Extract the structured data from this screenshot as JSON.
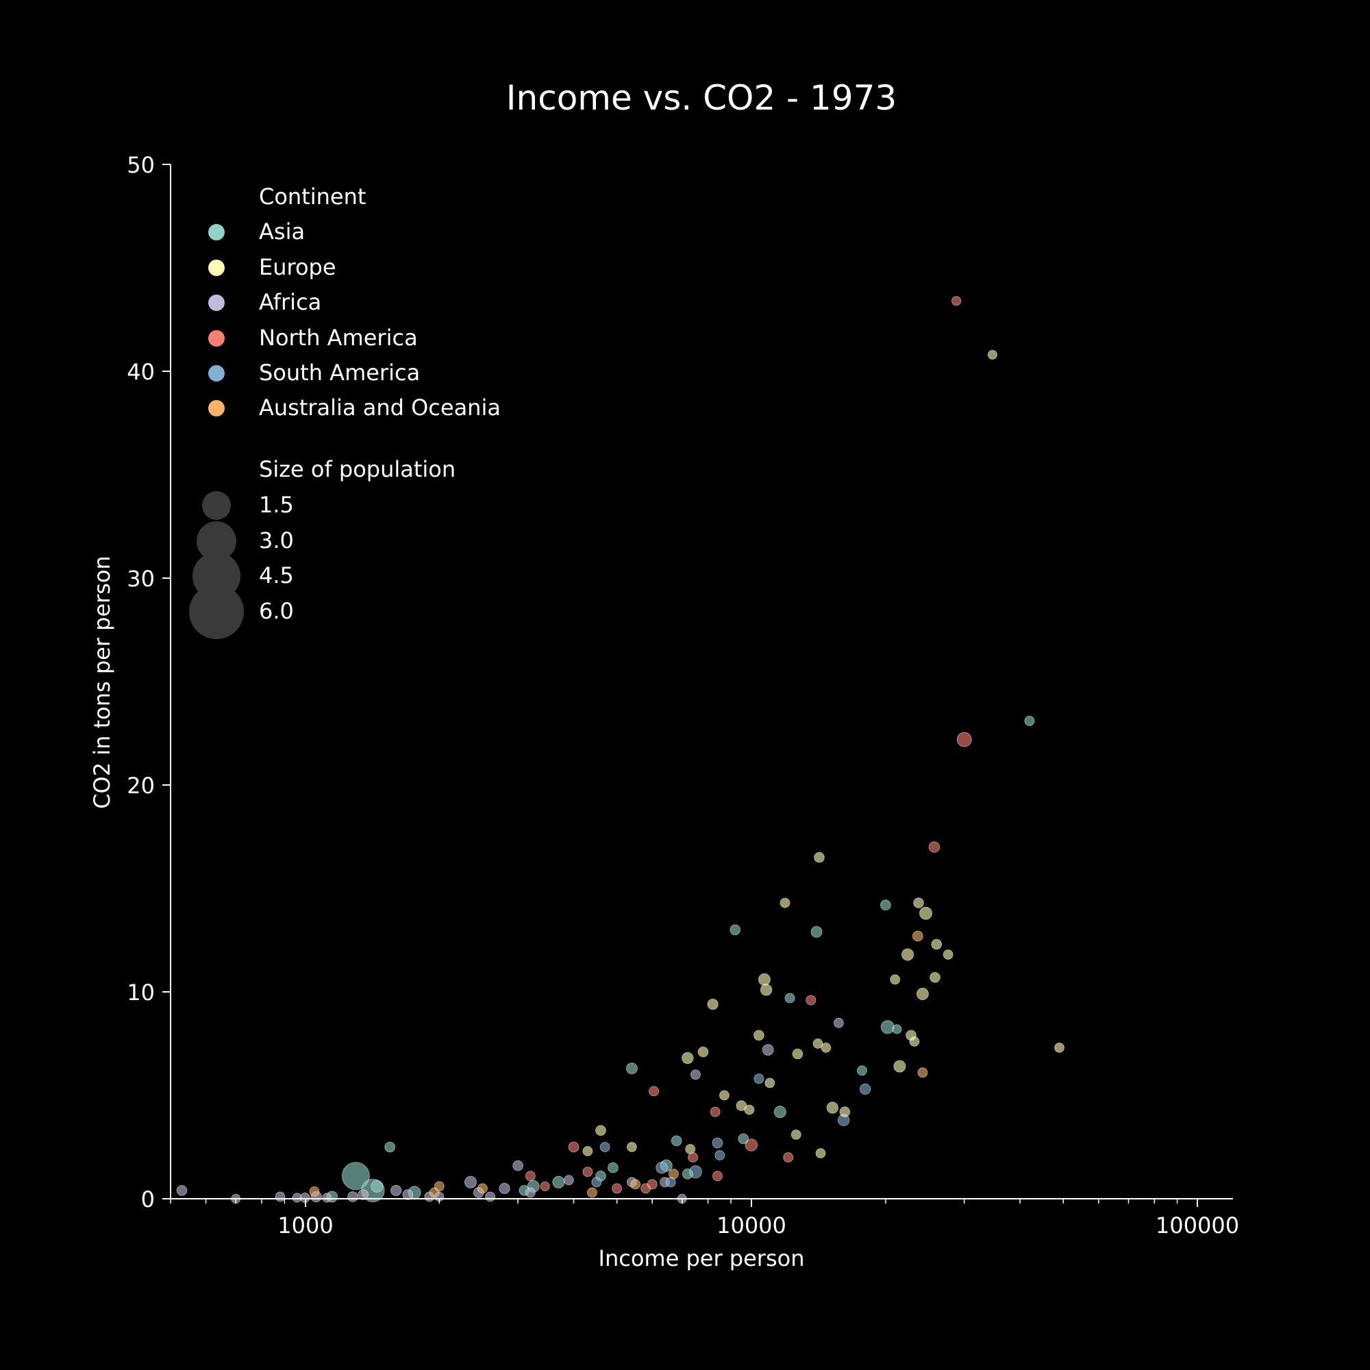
{
  "chart_data": {
    "type": "scatter",
    "title": "Income vs. CO2 - 1973",
    "xlabel": "Income per person",
    "ylabel": "CO2 in tons per person",
    "xscale": "log",
    "xlim": [
      500,
      120000
    ],
    "ylim": [
      0,
      50
    ],
    "x_ticks": [
      "1000",
      "10000",
      "100000"
    ],
    "y_ticks": [
      "0",
      "10",
      "20",
      "30",
      "40",
      "50"
    ],
    "grid": false,
    "legend": {
      "placement": "top-left",
      "continent_title": "Continent",
      "continents": [
        {
          "name": "Asia",
          "color": "#8dd3c7"
        },
        {
          "name": "Europe",
          "color": "#ffffb3"
        },
        {
          "name": "Africa",
          "color": "#bebada"
        },
        {
          "name": "North America",
          "color": "#fb8072"
        },
        {
          "name": "South America",
          "color": "#80b1d3"
        },
        {
          "name": "Australia and Oceania",
          "color": "#fdb462"
        }
      ],
      "size_title": "Size of population",
      "sizes": [
        "1.5",
        "3.0",
        "4.5",
        "6.0"
      ]
    },
    "series": [
      {
        "name": "Asia",
        "points": [
          [
            1300,
            1.1,
            9
          ],
          [
            1420,
            0.4,
            6
          ],
          [
            1450,
            0.6,
            1.2
          ],
          [
            1550,
            2.5,
            0.8
          ],
          [
            1760,
            0.3,
            1.4
          ],
          [
            1150,
            0.1,
            1
          ],
          [
            3100,
            0.4,
            0.8
          ],
          [
            3250,
            0.6,
            1.2
          ],
          [
            3700,
            0.8,
            1.2
          ],
          [
            4600,
            1.1,
            0.8
          ],
          [
            4900,
            1.5,
            0.8
          ],
          [
            5400,
            6.3,
            1
          ],
          [
            6450,
            1.6,
            1.2
          ],
          [
            6800,
            2.8,
            0.8
          ],
          [
            7200,
            1.2,
            0.8
          ],
          [
            9200,
            13.0,
            0.8
          ],
          [
            9600,
            2.9,
            0.8
          ],
          [
            11600,
            4.2,
            1.2
          ],
          [
            12200,
            9.7,
            0.7
          ],
          [
            14000,
            12.9,
            1
          ],
          [
            17700,
            6.2,
            0.7
          ],
          [
            20000,
            14.2,
            0.8
          ],
          [
            20200,
            8.3,
            1.6
          ],
          [
            21200,
            8.2,
            0.6
          ],
          [
            42000,
            23.1,
            0.7
          ]
        ]
      },
      {
        "name": "Europe",
        "points": [
          [
            4300,
            2.3,
            0.7
          ],
          [
            4600,
            3.3,
            0.8
          ],
          [
            5400,
            2.5,
            0.7
          ],
          [
            7200,
            6.8,
            1.1
          ],
          [
            7300,
            2.4,
            0.7
          ],
          [
            7800,
            7.1,
            0.8
          ],
          [
            8200,
            9.4,
            0.9
          ],
          [
            8700,
            5.0,
            0.7
          ],
          [
            9500,
            4.5,
            0.8
          ],
          [
            9900,
            4.3,
            0.7
          ],
          [
            10400,
            7.9,
            0.8
          ],
          [
            10700,
            10.6,
            1.2
          ],
          [
            10800,
            10.1,
            1.1
          ],
          [
            11000,
            5.6,
            0.7
          ],
          [
            11900,
            14.3,
            0.7
          ],
          [
            12700,
            7.0,
            0.8
          ],
          [
            14100,
            7.5,
            0.7
          ],
          [
            14200,
            16.5,
            0.8
          ],
          [
            14700,
            7.3,
            0.7
          ],
          [
            15200,
            4.4,
            1.1
          ],
          [
            16200,
            4.2,
            0.8
          ],
          [
            21000,
            10.6,
            0.7
          ],
          [
            21500,
            6.4,
            1.2
          ],
          [
            22400,
            11.8,
            1.2
          ],
          [
            22800,
            7.9,
            0.8
          ],
          [
            23200,
            7.6,
            0.7
          ],
          [
            23700,
            14.3,
            0.8
          ],
          [
            24200,
            9.9,
            1.2
          ],
          [
            24600,
            13.8,
            1.4
          ],
          [
            25800,
            10.7,
            0.8
          ],
          [
            26000,
            12.3,
            0.8
          ],
          [
            27600,
            11.8,
            0.7
          ],
          [
            34700,
            40.8,
            0.6
          ],
          [
            49000,
            7.3,
            0.7
          ],
          [
            12600,
            3.1,
            0.7
          ],
          [
            14300,
            2.2,
            0.7
          ]
        ]
      },
      {
        "name": "Africa",
        "points": [
          [
            530,
            0.4,
            0.8
          ],
          [
            700,
            0.0,
            0.6
          ],
          [
            880,
            0.1,
            0.7
          ],
          [
            960,
            0.05,
            0.6
          ],
          [
            1000,
            0.05,
            0.7
          ],
          [
            1060,
            0.1,
            0.9
          ],
          [
            1120,
            0.05,
            0.6
          ],
          [
            1280,
            0.1,
            0.8
          ],
          [
            1350,
            0.2,
            0.8
          ],
          [
            1600,
            0.4,
            0.9
          ],
          [
            1700,
            0.2,
            0.8
          ],
          [
            1900,
            0.1,
            0.7
          ],
          [
            2000,
            0.1,
            0.6
          ],
          [
            2350,
            0.8,
            1.2
          ],
          [
            2450,
            0.3,
            0.8
          ],
          [
            2600,
            0.1,
            0.7
          ],
          [
            2800,
            0.5,
            0.9
          ],
          [
            3000,
            1.6,
            0.8
          ],
          [
            3200,
            0.3,
            0.7
          ],
          [
            3900,
            0.9,
            0.7
          ],
          [
            5400,
            0.8,
            0.7
          ],
          [
            6400,
            0.8,
            0.7
          ],
          [
            7000,
            0.0,
            0.6
          ],
          [
            7500,
            6.0,
            0.7
          ],
          [
            10900,
            7.2,
            1
          ],
          [
            15700,
            8.5,
            0.7
          ]
        ]
      },
      {
        "name": "North America",
        "points": [
          [
            3200,
            1.1,
            0.7
          ],
          [
            3450,
            0.6,
            0.6
          ],
          [
            4000,
            2.5,
            0.8
          ],
          [
            4300,
            1.3,
            0.7
          ],
          [
            5000,
            0.5,
            0.7
          ],
          [
            5800,
            0.5,
            0.7
          ],
          [
            6000,
            0.7,
            0.7
          ],
          [
            6050,
            5.2,
            0.7
          ],
          [
            7400,
            2.0,
            0.7
          ],
          [
            8300,
            4.2,
            0.7
          ],
          [
            8400,
            1.1,
            0.7
          ],
          [
            10000,
            2.6,
            1.3
          ],
          [
            12100,
            2.0,
            0.7
          ],
          [
            13600,
            9.6,
            0.7
          ],
          [
            25700,
            17.0,
            0.9
          ],
          [
            28800,
            43.4,
            0.6
          ],
          [
            30000,
            22.2,
            2
          ]
        ]
      },
      {
        "name": "South America",
        "points": [
          [
            4500,
            0.8,
            0.7
          ],
          [
            4700,
            2.5,
            0.7
          ],
          [
            6300,
            1.5,
            1.1
          ],
          [
            6600,
            0.8,
            0.7
          ],
          [
            7500,
            1.3,
            1.4
          ],
          [
            8400,
            2.7,
            0.8
          ],
          [
            8500,
            2.1,
            0.7
          ],
          [
            10400,
            5.8,
            0.7
          ],
          [
            16100,
            3.8,
            1.1
          ],
          [
            18000,
            5.3,
            0.9
          ]
        ]
      },
      {
        "name": "Australia and Oceania",
        "points": [
          [
            1050,
            0.35,
            0.7
          ],
          [
            1950,
            0.3,
            0.7
          ],
          [
            2000,
            0.6,
            0.7
          ],
          [
            2500,
            0.5,
            0.7
          ],
          [
            4400,
            0.3,
            0.7
          ],
          [
            5500,
            0.7,
            0.7
          ],
          [
            6700,
            1.2,
            0.7
          ],
          [
            23600,
            12.7,
            0.8
          ],
          [
            24200,
            6.1,
            0.7
          ]
        ]
      }
    ]
  }
}
